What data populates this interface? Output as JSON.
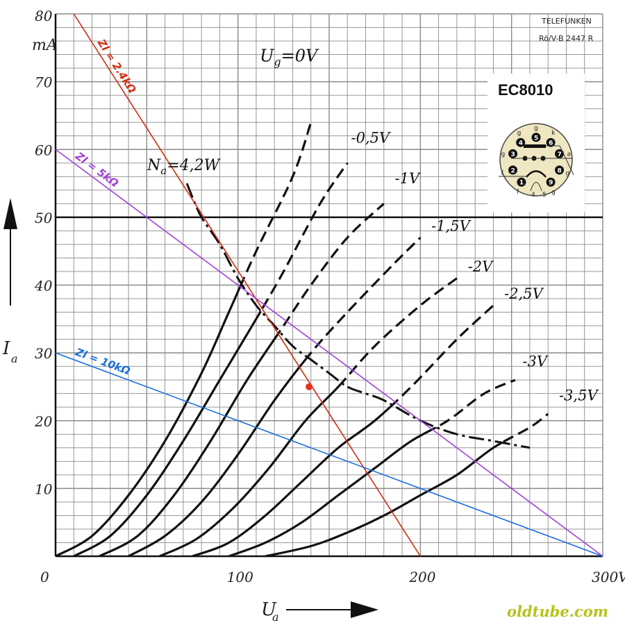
{
  "chart_data": {
    "type": "line",
    "title": "EC8010",
    "manufacturer": "TELEFUNKEN",
    "doc_ref": "Rö/V-B 2447 R",
    "xlabel": "U",
    "xlabel_sub": "a",
    "ylabel": "I",
    "ylabel_sub": "a",
    "y_unit": "mA",
    "xlim": [
      0,
      300
    ],
    "ylim": [
      0,
      80
    ],
    "x_ticks": [
      "0",
      "100",
      "200",
      "300V"
    ],
    "y_ticks": [
      "10",
      "20",
      "30",
      "40",
      "50",
      "60",
      "70",
      "80"
    ],
    "grid": true,
    "series": [
      {
        "name": "U_g = 0V",
        "label_prefix": "U",
        "label_sub": "g",
        "label_suffix": "=0V",
        "points": [
          [
            0,
            0
          ],
          [
            20,
            3
          ],
          [
            40,
            9
          ],
          [
            60,
            17
          ],
          [
            80,
            27
          ],
          [
            95,
            36
          ],
          [
            110,
            45
          ],
          [
            130,
            56
          ],
          [
            140,
            64
          ]
        ]
      },
      {
        "name": "-0,5V",
        "label": "-0,5V",
        "points": [
          [
            10,
            0
          ],
          [
            30,
            3
          ],
          [
            50,
            9
          ],
          [
            70,
            17
          ],
          [
            90,
            26
          ],
          [
            110,
            35
          ],
          [
            125,
            42
          ],
          [
            145,
            52
          ],
          [
            160,
            58
          ]
        ]
      },
      {
        "name": "-1V",
        "label": "-1V",
        "points": [
          [
            24,
            0
          ],
          [
            45,
            3
          ],
          [
            65,
            9
          ],
          [
            85,
            17
          ],
          [
            105,
            26
          ],
          [
            125,
            34
          ],
          [
            140,
            40
          ],
          [
            160,
            47
          ],
          [
            180,
            52
          ]
        ]
      },
      {
        "name": "-1,5V",
        "label": "-1,5V",
        "points": [
          [
            40,
            0
          ],
          [
            60,
            3
          ],
          [
            80,
            8
          ],
          [
            100,
            15
          ],
          [
            120,
            23
          ],
          [
            140,
            30
          ],
          [
            160,
            36
          ],
          [
            185,
            43
          ],
          [
            200,
            47
          ]
        ]
      },
      {
        "name": "-2V",
        "label": "-2V",
        "points": [
          [
            57,
            0
          ],
          [
            77,
            2.5
          ],
          [
            97,
            7
          ],
          [
            117,
            13
          ],
          [
            137,
            20
          ],
          [
            155,
            25
          ],
          [
            175,
            31
          ],
          [
            200,
            37
          ],
          [
            220,
            41
          ]
        ]
      },
      {
        "name": "-2,5V",
        "label": "-2,5V",
        "points": [
          [
            75,
            0
          ],
          [
            95,
            2
          ],
          [
            115,
            6
          ],
          [
            135,
            11
          ],
          [
            155,
            16
          ],
          [
            175,
            20
          ],
          [
            195,
            25
          ],
          [
            220,
            32
          ],
          [
            240,
            37
          ]
        ]
      },
      {
        "name": "-3V",
        "label": "-3V",
        "points": [
          [
            95,
            0
          ],
          [
            115,
            2
          ],
          [
            135,
            5
          ],
          [
            155,
            9
          ],
          [
            175,
            13
          ],
          [
            195,
            17
          ],
          [
            215,
            20
          ],
          [
            235,
            24
          ],
          [
            252,
            26
          ]
        ]
      },
      {
        "name": "-3,5V",
        "label": "-3,5V",
        "points": [
          [
            115,
            0
          ],
          [
            140,
            1.5
          ],
          [
            160,
            3.5
          ],
          [
            180,
            6
          ],
          [
            200,
            9
          ],
          [
            220,
            12
          ],
          [
            240,
            16
          ],
          [
            260,
            19
          ],
          [
            270,
            21
          ]
        ]
      }
    ],
    "power_limit": {
      "label_prefix": "N",
      "label_sub": "a",
      "label_suffix": "=4,2W",
      "points": [
        [
          72,
          55
        ],
        [
          75,
          53
        ],
        [
          80,
          50
        ],
        [
          90,
          46
        ],
        [
          100,
          41
        ],
        [
          110,
          37
        ],
        [
          120,
          34
        ],
        [
          130,
          31
        ],
        [
          140,
          29
        ],
        [
          150,
          27
        ],
        [
          160,
          25
        ],
        [
          170,
          24
        ],
        [
          180,
          23
        ],
        [
          200,
          20
        ],
        [
          220,
          18
        ],
        [
          240,
          17
        ],
        [
          260,
          16
        ]
      ]
    },
    "load_lines": [
      {
        "label": "Zl = 2.4kΩ",
        "color": "#d42a10",
        "points": [
          [
            10,
            80
          ],
          [
            200,
            0
          ]
        ]
      },
      {
        "label": "Zl = 5kΩ",
        "color": "#a040d8",
        "points": [
          [
            0,
            60
          ],
          [
            300,
            0
          ]
        ]
      },
      {
        "label": "Zl = 10kΩ",
        "color": "#1a6fe0",
        "points": [
          [
            0,
            30
          ],
          [
            300,
            0
          ]
        ]
      }
    ],
    "operating_point": {
      "x": 139,
      "y": 25,
      "color": "#e53020"
    }
  },
  "pinout": {
    "pins": [
      "1",
      "2",
      "3",
      "4",
      "5",
      "6",
      "7",
      "8",
      "9"
    ],
    "labels": [
      "f",
      "f",
      "g",
      "g",
      "g",
      "k",
      "a",
      "g",
      "g"
    ],
    "base_labels": [
      "4",
      "5"
    ]
  },
  "watermark": "oldtube.com"
}
